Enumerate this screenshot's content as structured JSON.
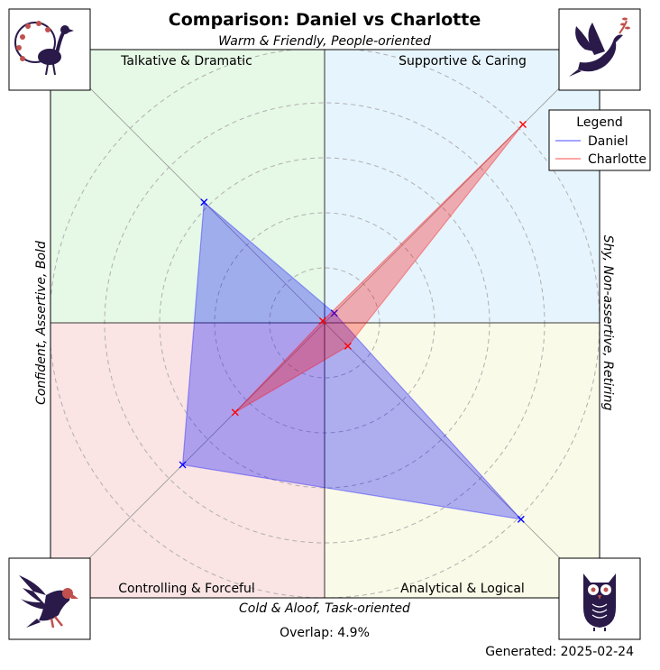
{
  "chart_data": {
    "type": "radar",
    "title": "Comparison: Daniel vs Charlotte",
    "axis_labels": {
      "top": "Warm & Friendly, People-oriented",
      "bottom": "Cold & Aloof, Task-oriented",
      "left": "Confident, Assertive, Bold",
      "right": "Shy, Non-assertive, Retiring"
    },
    "quadrants": [
      {
        "name": "Talkative & Dramatic",
        "position": "top-left",
        "color": "#e6f8e6"
      },
      {
        "name": "Supportive & Caring",
        "position": "top-right",
        "color": "#e6f4fd"
      },
      {
        "name": "Controlling & Forceful",
        "position": "bottom-left",
        "color": "#fae4e4"
      },
      {
        "name": "Analytical & Logical",
        "position": "bottom-right",
        "color": "#fafae8"
      }
    ],
    "axes": [
      "Supportive & Caring",
      "Talkative & Dramatic",
      "Controlling & Forceful",
      "Analytical & Logical"
    ],
    "rlim": [
      0,
      10
    ],
    "grid_rings": [
      2,
      4,
      6,
      8,
      10
    ],
    "series": [
      {
        "name": "Daniel",
        "color": "#0000ff",
        "values": [
          0.5,
          6.2,
          7.3,
          10.1
        ]
      },
      {
        "name": "Charlotte",
        "color": "#ff0000",
        "values": [
          10.2,
          0.1,
          4.6,
          1.2
        ]
      }
    ],
    "legend": {
      "title": "Legend",
      "position": "top-right"
    },
    "overlap_label": "Overlap: 4.9%",
    "generated_label": "Generated: 2025-02-24"
  },
  "icons": {
    "top_left": "peacock-icon",
    "top_right": "dove-icon",
    "bottom_left": "eagle-icon",
    "bottom_right": "owl-icon"
  }
}
